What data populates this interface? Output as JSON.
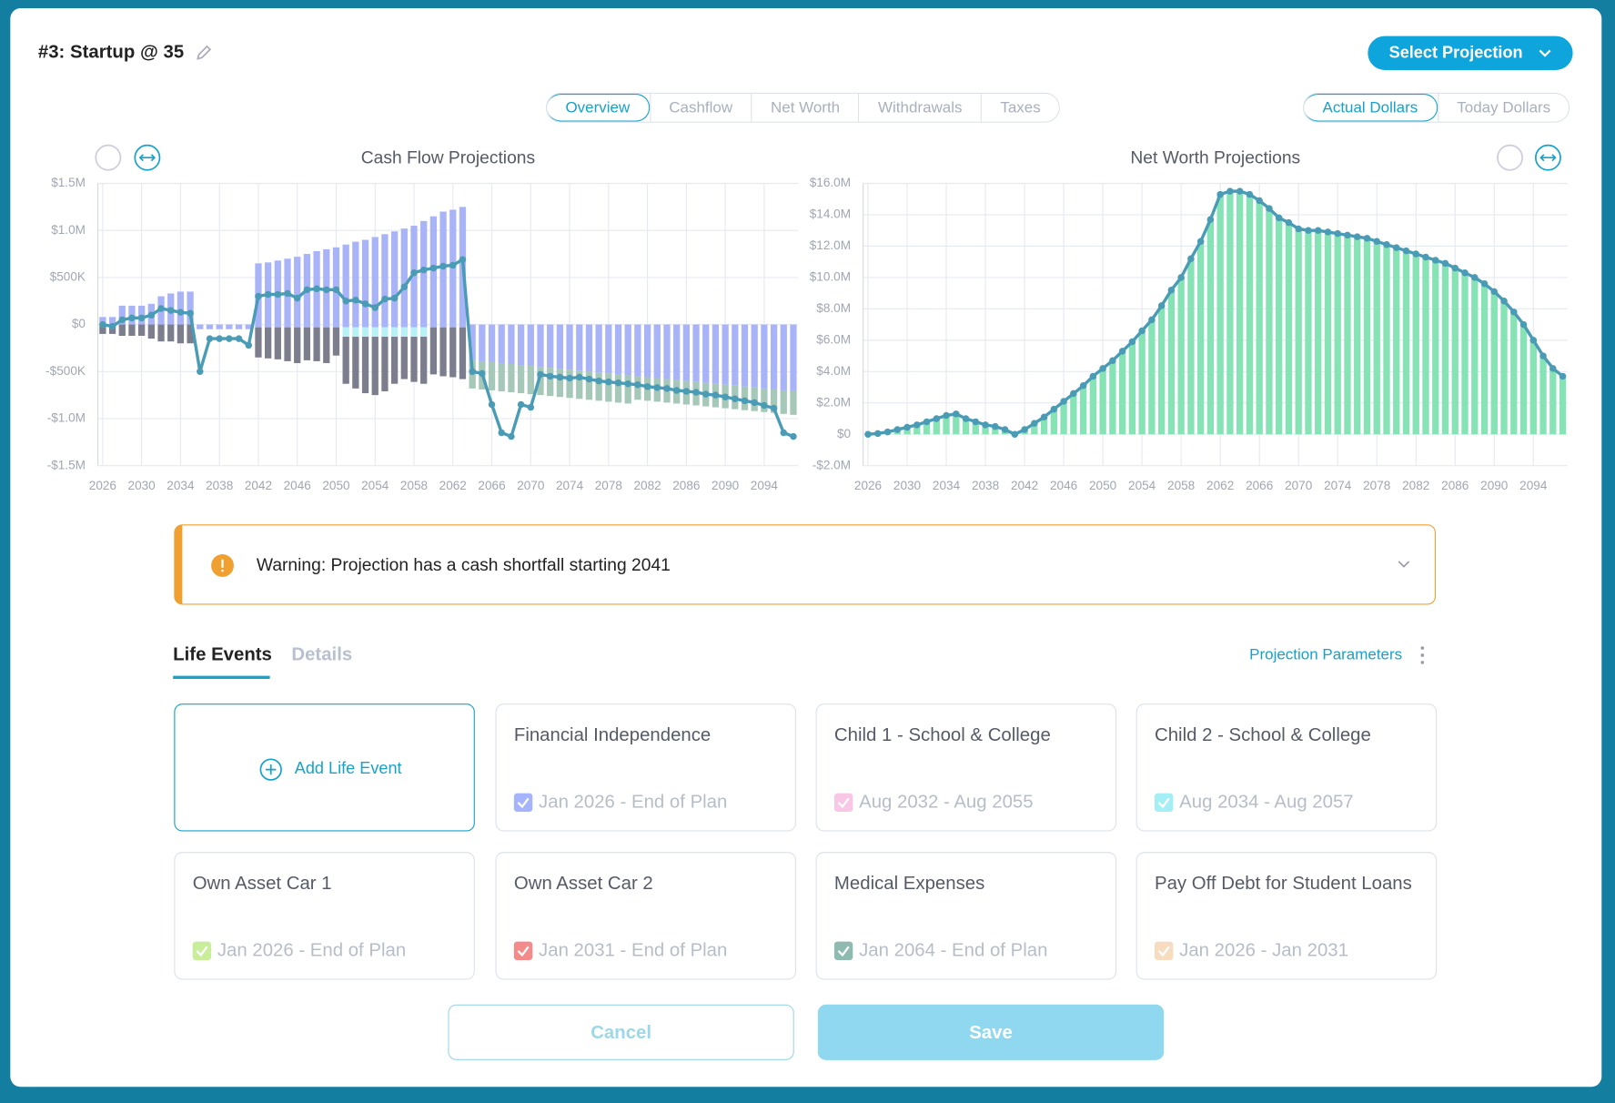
{
  "header": {
    "title": "#3: Startup @ 35",
    "select_button": "Select Projection"
  },
  "tabs": [
    "Overview",
    "Cashflow",
    "Net Worth",
    "Withdrawals",
    "Taxes"
  ],
  "dollar_toggle": [
    "Actual Dollars",
    "Today Dollars"
  ],
  "chart_data": [
    {
      "type": "bar",
      "title": "Cash Flow Projections",
      "x": [
        2026,
        2027,
        2028,
        2029,
        2030,
        2031,
        2032,
        2033,
        2034,
        2035,
        2036,
        2037,
        2038,
        2039,
        2040,
        2041,
        2042,
        2043,
        2044,
        2045,
        2046,
        2047,
        2048,
        2049,
        2050,
        2051,
        2052,
        2053,
        2054,
        2055,
        2056,
        2057,
        2058,
        2059,
        2060,
        2061,
        2062,
        2063,
        2064,
        2065,
        2066,
        2067,
        2068,
        2069,
        2070,
        2071,
        2072,
        2073,
        2074,
        2075,
        2076,
        2077,
        2078,
        2079,
        2080,
        2081,
        2082,
        2083,
        2084,
        2085,
        2086,
        2087,
        2088,
        2089,
        2090,
        2091,
        2092,
        2093,
        2094,
        2095,
        2096,
        2097
      ],
      "xlim": [
        2025.5,
        2097.5
      ],
      "xticks": [
        2026,
        2030,
        2034,
        2038,
        2042,
        2046,
        2050,
        2054,
        2058,
        2062,
        2066,
        2070,
        2074,
        2078,
        2082,
        2086,
        2090,
        2094
      ],
      "ylim": [
        -1.5,
        1.5
      ],
      "yticks": [
        {
          "value": -1.5,
          "label": "-$1.5M"
        },
        {
          "value": -1,
          "label": "-$1.0M"
        },
        {
          "value": -0.5,
          "label": "-$500K"
        },
        {
          "value": 0,
          "label": "$0"
        },
        {
          "value": 0.5,
          "label": "$500K"
        },
        {
          "value": 1,
          "label": "$1.0M"
        },
        {
          "value": 1.5,
          "label": "$1.5M"
        }
      ],
      "grid": true,
      "series": [
        {
          "color": "#a9b4f8",
          "values": [
            0.08,
            0.08,
            0.2,
            0.2,
            0.2,
            0.22,
            0.3,
            0.33,
            0.35,
            0.35,
            0,
            0,
            0,
            0,
            0,
            0,
            0.65,
            0.66,
            0.68,
            0.7,
            0.72,
            0.75,
            0.78,
            0.8,
            0.82,
            0.85,
            0.88,
            0.9,
            0.93,
            0.96,
            0.99,
            1.02,
            1.05,
            1.1,
            1.15,
            1.2,
            1.22,
            1.25,
            0,
            0,
            0,
            0,
            0,
            0,
            0,
            0,
            0,
            0,
            0,
            0,
            0,
            0,
            0,
            0,
            0,
            0,
            0,
            0,
            0,
            0,
            0,
            0,
            0,
            0,
            0,
            0,
            0,
            0,
            0,
            0,
            0,
            0
          ]
        },
        {
          "color": "#a9b4f8",
          "values": [
            0,
            0,
            0,
            0,
            0,
            0,
            0,
            0,
            0,
            0,
            -0.05,
            -0.05,
            -0.05,
            -0.05,
            -0.05,
            -0.05,
            -0.03,
            -0.03,
            -0.03,
            -0.03,
            -0.03,
            -0.03,
            -0.03,
            -0.03,
            -0.03,
            -0.03,
            -0.03,
            -0.03,
            -0.03,
            -0.03,
            -0.03,
            -0.03,
            -0.03,
            -0.03,
            -0.03,
            -0.03,
            -0.03,
            -0.03,
            -0.38,
            -0.39,
            -0.4,
            -0.41,
            -0.42,
            -0.43,
            -0.44,
            -0.45,
            -0.46,
            -0.47,
            -0.48,
            -0.49,
            -0.5,
            -0.51,
            -0.52,
            -0.53,
            -0.54,
            -0.55,
            -0.56,
            -0.57,
            -0.58,
            -0.59,
            -0.6,
            -0.61,
            -0.62,
            -0.63,
            -0.64,
            -0.65,
            -0.66,
            -0.67,
            -0.68,
            -0.69,
            -0.7,
            -0.71
          ]
        },
        {
          "color": "#b6f1f6",
          "values": [
            0,
            0,
            0,
            0,
            0,
            0,
            0,
            0,
            0,
            0,
            0,
            0,
            0,
            0,
            0,
            0,
            0,
            0,
            0,
            0,
            0,
            0,
            0,
            0,
            0,
            -0.1,
            -0.1,
            -0.1,
            -0.1,
            -0.1,
            -0.1,
            -0.1,
            -0.1,
            -0.1,
            0,
            0,
            0,
            0,
            0,
            0,
            0,
            0,
            0,
            0,
            0,
            0,
            0,
            0,
            0,
            0,
            0,
            0,
            0,
            0,
            0,
            0,
            0,
            0,
            0,
            0,
            0,
            0,
            0,
            0,
            0,
            0,
            0,
            0,
            0,
            0,
            0,
            0
          ]
        },
        {
          "color": "#7c7d8d",
          "values": [
            -0.1,
            -0.1,
            -0.12,
            -0.12,
            -0.12,
            -0.15,
            -0.18,
            -0.18,
            -0.2,
            -0.2,
            0,
            0,
            0,
            0,
            0,
            0,
            -0.32,
            -0.33,
            -0.34,
            -0.36,
            -0.38,
            -0.35,
            -0.36,
            -0.38,
            -0.3,
            -0.5,
            -0.55,
            -0.6,
            -0.62,
            -0.58,
            -0.5,
            -0.45,
            -0.48,
            -0.5,
            -0.5,
            -0.52,
            -0.53,
            -0.55,
            0,
            0,
            0,
            0,
            0,
            0,
            0,
            0,
            0,
            0,
            0,
            0,
            0,
            0,
            0,
            0,
            0,
            0,
            0,
            0,
            0,
            0,
            0,
            0,
            0,
            0,
            0,
            0,
            0,
            0,
            0,
            0,
            0,
            0
          ]
        },
        {
          "color": "#a6c8b8",
          "values": [
            0,
            0,
            0,
            0,
            0,
            0,
            0,
            0,
            0,
            0,
            0,
            0,
            0,
            0,
            0,
            0,
            0,
            0,
            0,
            0,
            0,
            0,
            0,
            0,
            0,
            0,
            0,
            0,
            0,
            0,
            0,
            0,
            0,
            0,
            0,
            0,
            0,
            0,
            -0.3,
            -0.3,
            -0.3,
            -0.3,
            -0.3,
            -0.3,
            -0.3,
            -0.3,
            -0.3,
            -0.3,
            -0.3,
            -0.3,
            -0.3,
            -0.3,
            -0.3,
            -0.3,
            -0.3,
            -0.25,
            -0.25,
            -0.25,
            -0.25,
            -0.25,
            -0.25,
            -0.25,
            -0.25,
            -0.25,
            -0.25,
            -0.25,
            -0.25,
            -0.25,
            -0.25,
            -0.25,
            -0.25,
            -0.25
          ]
        },
        {
          "type": "line",
          "color": "#4a9bb5",
          "values": [
            0,
            -0.02,
            0.05,
            0.07,
            0.07,
            0.1,
            0.17,
            0.15,
            0.13,
            0.12,
            -0.5,
            -0.15,
            -0.15,
            -0.15,
            -0.15,
            -0.22,
            0.3,
            0.32,
            0.32,
            0.33,
            0.28,
            0.37,
            0.38,
            0.37,
            0.37,
            0.25,
            0.26,
            0.22,
            0.18,
            0.27,
            0.28,
            0.4,
            0.55,
            0.58,
            0.6,
            0.62,
            0.63,
            0.69,
            -0.5,
            -0.52,
            -0.85,
            -1.15,
            -1.19,
            -0.85,
            -0.88,
            -0.53,
            -0.55,
            -0.56,
            -0.57,
            -0.56,
            -0.58,
            -0.6,
            -0.61,
            -0.62,
            -0.63,
            -0.64,
            -0.66,
            -0.67,
            -0.68,
            -0.7,
            -0.71,
            -0.72,
            -0.74,
            -0.75,
            -0.77,
            -0.79,
            -0.81,
            -0.83,
            -0.86,
            -0.89,
            -1.15,
            -1.19
          ]
        }
      ]
    },
    {
      "type": "bar",
      "title": "Net Worth Projections",
      "x": [
        2026,
        2027,
        2028,
        2029,
        2030,
        2031,
        2032,
        2033,
        2034,
        2035,
        2036,
        2037,
        2038,
        2039,
        2040,
        2041,
        2042,
        2043,
        2044,
        2045,
        2046,
        2047,
        2048,
        2049,
        2050,
        2051,
        2052,
        2053,
        2054,
        2055,
        2056,
        2057,
        2058,
        2059,
        2060,
        2061,
        2062,
        2063,
        2064,
        2065,
        2066,
        2067,
        2068,
        2069,
        2070,
        2071,
        2072,
        2073,
        2074,
        2075,
        2076,
        2077,
        2078,
        2079,
        2080,
        2081,
        2082,
        2083,
        2084,
        2085,
        2086,
        2087,
        2088,
        2089,
        2090,
        2091,
        2092,
        2093,
        2094,
        2095,
        2096,
        2097
      ],
      "xlim": [
        2025.5,
        2097.5
      ],
      "xticks": [
        2026,
        2030,
        2034,
        2038,
        2042,
        2046,
        2050,
        2054,
        2058,
        2062,
        2066,
        2070,
        2074,
        2078,
        2082,
        2086,
        2090,
        2094
      ],
      "ylim": [
        -2,
        16
      ],
      "yticks": [
        {
          "value": -2,
          "label": "-$2.0M"
        },
        {
          "value": 0,
          "label": "$0"
        },
        {
          "value": 2,
          "label": "$2.0M"
        },
        {
          "value": 4,
          "label": "$4.0M"
        },
        {
          "value": 6,
          "label": "$6.0M"
        },
        {
          "value": 8,
          "label": "$8.0M"
        },
        {
          "value": 10,
          "label": "$10.0M"
        },
        {
          "value": 12,
          "label": "$12.0M"
        },
        {
          "value": 14,
          "label": "$14.0M"
        },
        {
          "value": 16,
          "label": "$16.0M"
        }
      ],
      "grid": true,
      "series": [
        {
          "color": "#86e3b5",
          "line_color": "#4a9bb5",
          "values": [
            0,
            0.05,
            0.15,
            0.3,
            0.45,
            0.6,
            0.8,
            1.0,
            1.2,
            1.3,
            1.0,
            0.8,
            0.6,
            0.5,
            0.3,
            0.0,
            0.3,
            0.7,
            1.1,
            1.6,
            2.1,
            2.6,
            3.1,
            3.7,
            4.2,
            4.7,
            5.3,
            5.9,
            6.6,
            7.3,
            8.2,
            9.2,
            10.0,
            11.2,
            12.3,
            13.7,
            15.3,
            15.5,
            15.5,
            15.3,
            14.9,
            14.4,
            13.8,
            13.5,
            13.1,
            13.0,
            13.0,
            12.9,
            12.8,
            12.7,
            12.6,
            12.5,
            12.3,
            12.1,
            11.9,
            11.7,
            11.5,
            11.3,
            11.1,
            10.9,
            10.6,
            10.3,
            10.0,
            9.6,
            9.1,
            8.5,
            7.8,
            7.0,
            6.0,
            5.0,
            4.2,
            3.7
          ]
        }
      ]
    }
  ],
  "warning": "Warning: Projection has a cash shortfall starting 2041",
  "section_tabs": [
    "Life Events",
    "Details"
  ],
  "parameters_link": "Projection Parameters",
  "add_event": "Add Life Event",
  "events": [
    {
      "title": "Financial Independence",
      "dates": "Jan 2026 - End of Plan",
      "color": "#a5b4fc"
    },
    {
      "title": "Child 1 - School & College",
      "dates": "Aug 2032 - Aug 2055",
      "color": "#f9c6e6"
    },
    {
      "title": "Child 2 - School & College",
      "dates": "Aug 2034 - Aug 2057",
      "color": "#a3eff5"
    },
    {
      "title": "Own Asset Car 1",
      "dates": "Jan 2026 - End of Plan",
      "color": "#c8ee9b"
    },
    {
      "title": "Own Asset Car 2",
      "dates": "Jan 2031 - End of Plan",
      "color": "#f58a8a"
    },
    {
      "title": "Medical Expenses",
      "dates": "Jan 2064 - End of Plan",
      "color": "#8fbab0"
    },
    {
      "title": "Pay Off Debt for Student Loans",
      "dates": "Jan 2026 - Jan 2031",
      "color": "#f8dcc0"
    }
  ],
  "buttons": {
    "cancel": "Cancel",
    "save": "Save"
  }
}
